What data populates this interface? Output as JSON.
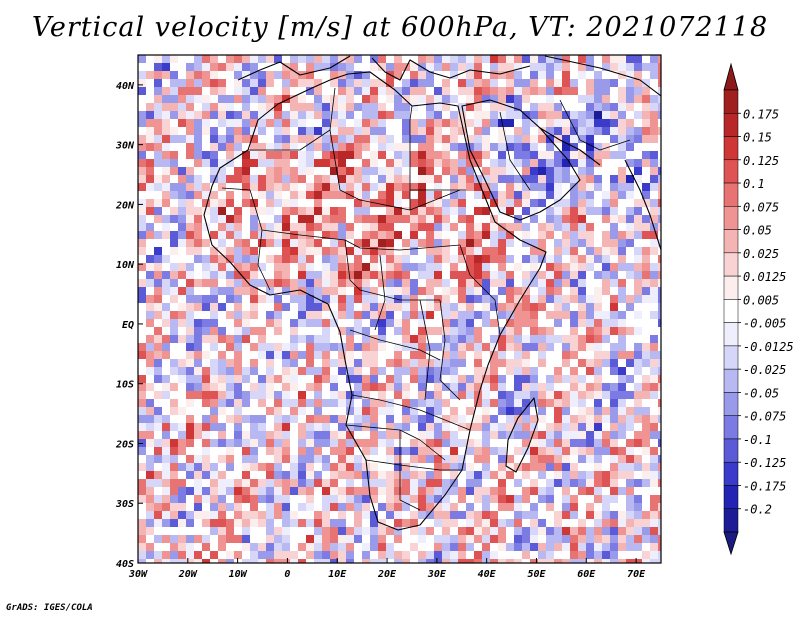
{
  "title": "Vertical velocity [m/s] at 600hPa, VT: 2021072118",
  "credit": "GrADS: IGES/COLA",
  "map": {
    "region": "Africa and surrounding oceans",
    "lon_range": [
      -30,
      75
    ],
    "lat_range": [
      -40,
      45
    ],
    "x_ticks": [
      "30W",
      "20W",
      "10W",
      "0",
      "10E",
      "20E",
      "30E",
      "40E",
      "50E",
      "60E",
      "70E"
    ],
    "y_ticks": [
      "40N",
      "30N",
      "20N",
      "10N",
      "EQ",
      "10S",
      "20S",
      "30S",
      "40S"
    ]
  },
  "colorbar": {
    "labels": [
      "0.175",
      "0.15",
      "0.125",
      "0.1",
      "0.075",
      "0.05",
      "0.025",
      "0.0125",
      "0.005",
      "-0.005",
      "-0.0125",
      "-0.025",
      "-0.05",
      "-0.075",
      "-0.1",
      "-0.125",
      "-0.175",
      "-0.2"
    ],
    "colors": [
      "#a01f1f",
      "#b82828",
      "#cf3636",
      "#de5353",
      "#e87373",
      "#ef9393",
      "#f4b4b4",
      "#f9d3d3",
      "#fdeeee",
      "#ffffff",
      "#eeeefd",
      "#d6d6f8",
      "#b8b8f2",
      "#9a9aeb",
      "#7b7be3",
      "#5b5bd8",
      "#3a3acb",
      "#2424b4",
      "#1c1c96"
    ],
    "top_arrow_color": "#8c1a1a",
    "bottom_arrow_color": "#1a1a80"
  }
}
